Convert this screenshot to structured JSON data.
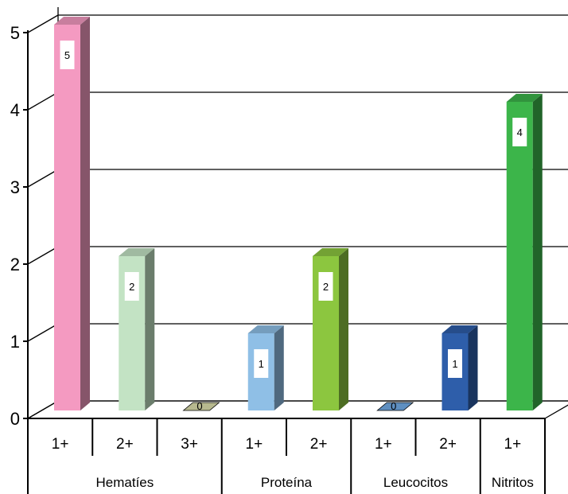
{
  "chart_data": {
    "type": "bar",
    "title": "",
    "xlabel": "",
    "ylabel": "",
    "ylim": [
      0,
      5
    ],
    "yticks": [
      "0",
      "1",
      "2",
      "3",
      "4",
      "5"
    ],
    "grid": true,
    "three_d": true,
    "groups": [
      {
        "label": "Hematíes",
        "categories": [
          "1+",
          "2+",
          "3+"
        ]
      },
      {
        "label": "Proteína",
        "categories": [
          "1+",
          "2+"
        ]
      },
      {
        "label": "Leucocitos",
        "categories": [
          "1+",
          "2+"
        ]
      },
      {
        "label": "Nitritos",
        "categories": [
          "1+"
        ]
      }
    ],
    "bars": [
      {
        "group": "Hematíes",
        "category": "1+",
        "value": 5,
        "label": "5",
        "color": "#f49ac1"
      },
      {
        "group": "Hematíes",
        "category": "2+",
        "value": 2,
        "label": "2",
        "color": "#c3e3c4"
      },
      {
        "group": "Hematíes",
        "category": "3+",
        "value": 0,
        "label": "0",
        "color": "#b7b98f"
      },
      {
        "group": "Proteína",
        "category": "1+",
        "value": 1,
        "label": "1",
        "color": "#8fbfe6"
      },
      {
        "group": "Proteína",
        "category": "2+",
        "value": 2,
        "label": "2",
        "color": "#8cc63f"
      },
      {
        "group": "Leucocitos",
        "category": "1+",
        "value": 0,
        "label": "0",
        "color": "#5f8fc0"
      },
      {
        "group": "Leucocitos",
        "category": "2+",
        "value": 1,
        "label": "1",
        "color": "#2e5eaa"
      },
      {
        "group": "Nitritos",
        "category": "1+",
        "value": 4,
        "label": "4",
        "color": "#3cb54a"
      }
    ]
  }
}
